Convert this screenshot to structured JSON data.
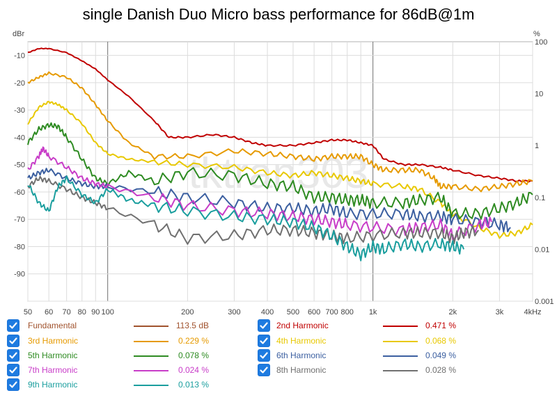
{
  "chart_data": {
    "type": "line",
    "title": "single Danish Duo Micro bass performance for 86dB@1m",
    "ylabel_left": "dBr",
    "ylabel_right": "%",
    "xlabel_unit": "kHz",
    "watermark": "tktran303",
    "x_range": [
      50,
      4000
    ],
    "y_left_range": [
      -100,
      -5
    ],
    "y_right_range_log": [
      0.001,
      100
    ],
    "x_ticks": [
      {
        "v": 50,
        "label": "50"
      },
      {
        "v": 60,
        "label": "60"
      },
      {
        "v": 70,
        "label": "70"
      },
      {
        "v": 80,
        "label": "80"
      },
      {
        "v": 90,
        "label": "90"
      },
      {
        "v": 100,
        "label": "100"
      },
      {
        "v": 200,
        "label": "200"
      },
      {
        "v": 300,
        "label": "300"
      },
      {
        "v": 400,
        "label": "400"
      },
      {
        "v": 500,
        "label": "500"
      },
      {
        "v": 600,
        "label": "600"
      },
      {
        "v": 700,
        "label": "700"
      },
      {
        "v": 800,
        "label": "800"
      },
      {
        "v": 1000,
        "label": "1k"
      },
      {
        "v": 2000,
        "label": "2k"
      },
      {
        "v": 3000,
        "label": "3k"
      },
      {
        "v": 4000,
        "label": "4kHz"
      }
    ],
    "y_left_ticks": [
      -10,
      -20,
      -30,
      -40,
      -50,
      -60,
      -70,
      -80,
      -90
    ],
    "y_right_ticks": [
      {
        "v": 100,
        "label": "100"
      },
      {
        "v": 10,
        "label": "10"
      },
      {
        "v": 1,
        "label": "1"
      },
      {
        "v": 0.1,
        "label": "0.1"
      },
      {
        "v": 0.01,
        "label": "0.01"
      },
      {
        "v": 0.001,
        "label": "0.001"
      }
    ],
    "series": [
      {
        "name": "Fundamental",
        "value": "113.5 dB",
        "color": "#a0522d",
        "points": []
      },
      {
        "name": "2nd Harmonic",
        "value": "0.471 %",
        "color": "#c00000",
        "points": [
          [
            50,
            -9
          ],
          [
            55,
            -7.5
          ],
          [
            60,
            -7.5
          ],
          [
            70,
            -9
          ],
          [
            80,
            -12
          ],
          [
            90,
            -15
          ],
          [
            100,
            -19
          ],
          [
            120,
            -25
          ],
          [
            150,
            -34
          ],
          [
            170,
            -40
          ],
          [
            200,
            -40
          ],
          [
            250,
            -39
          ],
          [
            300,
            -40
          ],
          [
            350,
            -42
          ],
          [
            400,
            -43
          ],
          [
            500,
            -43
          ],
          [
            600,
            -42
          ],
          [
            700,
            -41
          ],
          [
            800,
            -41
          ],
          [
            900,
            -42
          ],
          [
            1000,
            -43
          ],
          [
            1100,
            -48
          ],
          [
            1300,
            -50
          ],
          [
            1500,
            -50
          ],
          [
            1800,
            -51
          ],
          [
            2000,
            -52
          ],
          [
            2500,
            -54
          ],
          [
            3000,
            -55
          ],
          [
            3500,
            -56
          ],
          [
            4000,
            -56
          ]
        ]
      },
      {
        "name": "3rd Harmonic",
        "value": "0.229 %",
        "color": "#e69a00",
        "points": [
          [
            50,
            -20
          ],
          [
            55,
            -18
          ],
          [
            60,
            -16.5
          ],
          [
            70,
            -18
          ],
          [
            80,
            -22
          ],
          [
            90,
            -28
          ],
          [
            100,
            -34
          ],
          [
            120,
            -42
          ],
          [
            150,
            -47
          ],
          [
            200,
            -47
          ],
          [
            300,
            -45
          ],
          [
            400,
            -46
          ],
          [
            500,
            -47
          ],
          [
            600,
            -48
          ],
          [
            700,
            -47
          ],
          [
            800,
            -47
          ],
          [
            900,
            -47
          ],
          [
            1000,
            -50
          ],
          [
            1100,
            -52
          ],
          [
            1300,
            -52
          ],
          [
            1500,
            -52
          ],
          [
            1700,
            -55
          ],
          [
            1800,
            -58
          ],
          [
            2000,
            -58
          ],
          [
            2500,
            -59
          ],
          [
            3000,
            -58
          ],
          [
            3500,
            -57
          ],
          [
            4000,
            -56
          ]
        ]
      },
      {
        "name": "4th Harmonic",
        "value": "0.068 %",
        "color": "#e8c800",
        "points": [
          [
            50,
            -35
          ],
          [
            55,
            -29
          ],
          [
            60,
            -27
          ],
          [
            65,
            -28
          ],
          [
            70,
            -30
          ],
          [
            80,
            -35
          ],
          [
            90,
            -42
          ],
          [
            100,
            -46
          ],
          [
            120,
            -48
          ],
          [
            150,
            -49
          ],
          [
            200,
            -50
          ],
          [
            300,
            -51
          ],
          [
            400,
            -53
          ],
          [
            500,
            -54
          ],
          [
            600,
            -53
          ],
          [
            700,
            -54
          ],
          [
            800,
            -55
          ],
          [
            900,
            -56
          ],
          [
            1000,
            -57
          ],
          [
            1300,
            -58
          ],
          [
            1500,
            -59
          ],
          [
            1800,
            -64
          ],
          [
            2000,
            -68
          ],
          [
            2500,
            -73
          ],
          [
            3000,
            -76
          ],
          [
            3500,
            -75
          ],
          [
            4000,
            -72
          ]
        ]
      },
      {
        "name": "5th Harmonic",
        "value": "0.078 %",
        "color": "#2e8b22",
        "points": [
          [
            50,
            -42
          ],
          [
            55,
            -37
          ],
          [
            60,
            -35.5
          ],
          [
            65,
            -36
          ],
          [
            70,
            -40
          ],
          [
            80,
            -48
          ],
          [
            90,
            -55
          ],
          [
            100,
            -57
          ],
          [
            120,
            -53
          ],
          [
            150,
            -56
          ],
          [
            200,
            -53
          ],
          [
            300,
            -54
          ],
          [
            400,
            -57
          ],
          [
            500,
            -58
          ],
          [
            600,
            -62
          ],
          [
            700,
            -62
          ],
          [
            800,
            -63
          ],
          [
            900,
            -63
          ],
          [
            1000,
            -64
          ],
          [
            1300,
            -64
          ],
          [
            1500,
            -63
          ],
          [
            1800,
            -62
          ],
          [
            2000,
            -68
          ],
          [
            2500,
            -68
          ],
          [
            3000,
            -66
          ],
          [
            3500,
            -64
          ],
          [
            4000,
            -61
          ]
        ]
      },
      {
        "name": "6th Harmonic",
        "value": "0.049 %",
        "color": "#3b5fa0",
        "points": [
          [
            50,
            -55
          ],
          [
            55,
            -53
          ],
          [
            60,
            -52
          ],
          [
            70,
            -55
          ],
          [
            80,
            -57
          ],
          [
            90,
            -58
          ],
          [
            100,
            -58
          ],
          [
            150,
            -60
          ],
          [
            200,
            -62
          ],
          [
            300,
            -64
          ],
          [
            400,
            -66
          ],
          [
            500,
            -66
          ],
          [
            600,
            -67
          ],
          [
            700,
            -66
          ],
          [
            800,
            -68
          ],
          [
            1000,
            -68
          ],
          [
            1300,
            -68
          ],
          [
            1500,
            -69
          ],
          [
            1800,
            -69
          ],
          [
            2000,
            -70
          ],
          [
            2500,
            -71
          ],
          [
            3000,
            -72
          ],
          [
            3300,
            -73
          ]
        ]
      },
      {
        "name": "7th Harmonic",
        "value": "0.024 %",
        "color": "#c83dc8",
        "points": [
          [
            50,
            -52
          ],
          [
            55,
            -47
          ],
          [
            57,
            -44
          ],
          [
            60,
            -47
          ],
          [
            70,
            -51
          ],
          [
            80,
            -55
          ],
          [
            90,
            -57
          ],
          [
            100,
            -58
          ],
          [
            150,
            -62
          ],
          [
            200,
            -65
          ],
          [
            300,
            -67
          ],
          [
            400,
            -68
          ],
          [
            500,
            -69
          ],
          [
            600,
            -70
          ],
          [
            700,
            -71
          ],
          [
            800,
            -72
          ],
          [
            1000,
            -73
          ],
          [
            1300,
            -74
          ],
          [
            1500,
            -73
          ],
          [
            1800,
            -72
          ],
          [
            2000,
            -76
          ],
          [
            2500,
            -72
          ],
          [
            2800,
            -71
          ]
        ]
      },
      {
        "name": "8th Harmonic",
        "value": "0.028 %",
        "color": "#707070",
        "points": [
          [
            50,
            -58
          ],
          [
            55,
            -55
          ],
          [
            60,
            -56
          ],
          [
            70,
            -59
          ],
          [
            80,
            -62
          ],
          [
            90,
            -64
          ],
          [
            100,
            -66
          ],
          [
            150,
            -72
          ],
          [
            200,
            -77
          ],
          [
            300,
            -76
          ],
          [
            400,
            -74
          ],
          [
            500,
            -74
          ],
          [
            600,
            -75
          ],
          [
            700,
            -76
          ],
          [
            800,
            -77
          ],
          [
            1000,
            -76
          ],
          [
            1300,
            -75
          ],
          [
            1500,
            -75
          ],
          [
            1800,
            -75
          ],
          [
            2000,
            -77
          ],
          [
            2200,
            -75
          ],
          [
            2500,
            -74
          ]
        ]
      },
      {
        "name": "9th Harmonic",
        "value": "0.013 %",
        "color": "#1a9e9e",
        "points": [
          [
            50,
            -57
          ],
          [
            55,
            -64
          ],
          [
            60,
            -67
          ],
          [
            65,
            -58
          ],
          [
            70,
            -55
          ],
          [
            80,
            -61
          ],
          [
            90,
            -64
          ],
          [
            100,
            -59
          ],
          [
            120,
            -63
          ],
          [
            150,
            -65
          ],
          [
            200,
            -67
          ],
          [
            300,
            -69
          ],
          [
            400,
            -70
          ],
          [
            500,
            -71
          ],
          [
            600,
            -73
          ],
          [
            700,
            -76
          ],
          [
            800,
            -80
          ],
          [
            900,
            -83
          ],
          [
            1000,
            -80
          ],
          [
            1100,
            -81
          ],
          [
            1300,
            -79
          ],
          [
            1500,
            -80
          ],
          [
            1800,
            -79
          ],
          [
            2000,
            -80
          ],
          [
            2200,
            -81
          ]
        ]
      }
    ]
  }
}
